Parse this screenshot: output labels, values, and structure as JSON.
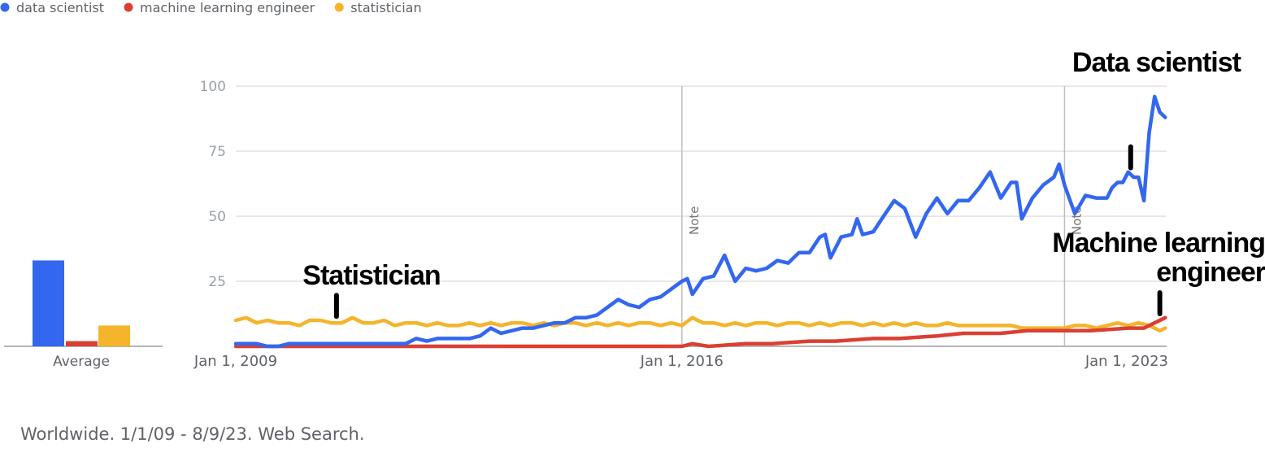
{
  "footer": "Worldwide. 1/1/09 - 8/9/23. Web Search.",
  "average_label": "Average",
  "colors": {
    "data scientist": "#3367f0",
    "machine learning engineer": "#db3f33",
    "statistician": "#f4b42c"
  },
  "chart_data": {
    "type": "line",
    "legend_position": "top-left",
    "grid": true,
    "x_range": [
      "Jan 1, 2009",
      "Aug 9, 2023"
    ],
    "ylim": [
      0,
      100
    ],
    "yticks": [
      25,
      50,
      75,
      100
    ],
    "xticks": [
      {
        "date": "2009-01-01",
        "label": "Jan 1, 2009"
      },
      {
        "date": "2016-01-01",
        "label": "Jan 1, 2016"
      },
      {
        "date": "2023-01-01",
        "label": "Jan 1, 2023"
      }
    ],
    "notes": [
      {
        "date": "2016-01-01",
        "label": "Note"
      },
      {
        "date": "2022-01-01",
        "label": "Note"
      }
    ],
    "annotations": [
      {
        "lines": [
          "Statistician"
        ],
        "series": "statistician",
        "date": "2010-08-01"
      },
      {
        "lines": [
          "Data scientist"
        ],
        "series": "data scientist",
        "date": "2023-01-15"
      },
      {
        "lines": [
          "Machine learning",
          "engineer"
        ],
        "series": "machine learning engineer",
        "date": "2023-07-01"
      }
    ],
    "series": [
      {
        "name": "data scientist",
        "average": 33,
        "points": [
          [
            "2009-01-01",
            1
          ],
          [
            "2009-03-01",
            1
          ],
          [
            "2009-05-01",
            1
          ],
          [
            "2009-07-01",
            0
          ],
          [
            "2009-09-01",
            0
          ],
          [
            "2009-11-01",
            1
          ],
          [
            "2010-01-01",
            1
          ],
          [
            "2010-03-01",
            1
          ],
          [
            "2010-05-01",
            1
          ],
          [
            "2010-07-01",
            1
          ],
          [
            "2010-09-01",
            1
          ],
          [
            "2010-11-01",
            1
          ],
          [
            "2011-01-01",
            1
          ],
          [
            "2011-03-01",
            1
          ],
          [
            "2011-05-01",
            1
          ],
          [
            "2011-07-01",
            1
          ],
          [
            "2011-09-01",
            1
          ],
          [
            "2011-11-01",
            3
          ],
          [
            "2012-01-01",
            2
          ],
          [
            "2012-03-01",
            3
          ],
          [
            "2012-05-01",
            3
          ],
          [
            "2012-07-01",
            3
          ],
          [
            "2012-09-01",
            3
          ],
          [
            "2012-11-01",
            4
          ],
          [
            "2013-01-01",
            7
          ],
          [
            "2013-03-01",
            5
          ],
          [
            "2013-05-01",
            6
          ],
          [
            "2013-07-01",
            7
          ],
          [
            "2013-09-01",
            7
          ],
          [
            "2013-11-01",
            8
          ],
          [
            "2014-01-01",
            9
          ],
          [
            "2014-03-01",
            9
          ],
          [
            "2014-05-01",
            11
          ],
          [
            "2014-07-01",
            11
          ],
          [
            "2014-09-01",
            12
          ],
          [
            "2014-11-01",
            15
          ],
          [
            "2015-01-01",
            18
          ],
          [
            "2015-03-01",
            16
          ],
          [
            "2015-05-01",
            15
          ],
          [
            "2015-07-01",
            18
          ],
          [
            "2015-09-01",
            19
          ],
          [
            "2015-11-01",
            22
          ],
          [
            "2016-01-01",
            25
          ],
          [
            "2016-02-01",
            26
          ],
          [
            "2016-03-01",
            20
          ],
          [
            "2016-05-01",
            26
          ],
          [
            "2016-07-01",
            27
          ],
          [
            "2016-09-01",
            35
          ],
          [
            "2016-11-01",
            25
          ],
          [
            "2017-01-01",
            30
          ],
          [
            "2017-03-01",
            29
          ],
          [
            "2017-05-01",
            30
          ],
          [
            "2017-07-01",
            33
          ],
          [
            "2017-09-01",
            32
          ],
          [
            "2017-11-01",
            36
          ],
          [
            "2018-01-01",
            36
          ],
          [
            "2018-03-01",
            42
          ],
          [
            "2018-04-01",
            43
          ],
          [
            "2018-05-01",
            34
          ],
          [
            "2018-07-01",
            42
          ],
          [
            "2018-09-01",
            43
          ],
          [
            "2018-10-01",
            49
          ],
          [
            "2018-11-01",
            43
          ],
          [
            "2019-01-01",
            44
          ],
          [
            "2019-03-01",
            50
          ],
          [
            "2019-05-01",
            56
          ],
          [
            "2019-07-01",
            53
          ],
          [
            "2019-09-01",
            42
          ],
          [
            "2019-11-01",
            51
          ],
          [
            "2020-01-01",
            57
          ],
          [
            "2020-03-01",
            51
          ],
          [
            "2020-05-01",
            56
          ],
          [
            "2020-07-01",
            56
          ],
          [
            "2020-09-01",
            61
          ],
          [
            "2020-11-01",
            67
          ],
          [
            "2021-01-01",
            57
          ],
          [
            "2021-03-01",
            63
          ],
          [
            "2021-04-01",
            63
          ],
          [
            "2021-05-01",
            49
          ],
          [
            "2021-07-01",
            57
          ],
          [
            "2021-09-01",
            62
          ],
          [
            "2021-11-01",
            65
          ],
          [
            "2021-12-01",
            70
          ],
          [
            "2022-01-01",
            62
          ],
          [
            "2022-03-01",
            51
          ],
          [
            "2022-05-01",
            58
          ],
          [
            "2022-07-01",
            57
          ],
          [
            "2022-09-01",
            57
          ],
          [
            "2022-10-01",
            61
          ],
          [
            "2022-11-01",
            63
          ],
          [
            "2022-12-01",
            63
          ],
          [
            "2023-01-01",
            67
          ],
          [
            "2023-02-01",
            65
          ],
          [
            "2023-03-01",
            65
          ],
          [
            "2023-04-01",
            56
          ],
          [
            "2023-05-01",
            82
          ],
          [
            "2023-06-01",
            96
          ],
          [
            "2023-07-01",
            90
          ],
          [
            "2023-08-01",
            88
          ]
        ]
      },
      {
        "name": "machine learning engineer",
        "average": 2,
        "points": [
          [
            "2009-01-01",
            0
          ],
          [
            "2010-01-01",
            0
          ],
          [
            "2011-01-01",
            0
          ],
          [
            "2012-01-01",
            0
          ],
          [
            "2013-01-01",
            0
          ],
          [
            "2014-01-01",
            0
          ],
          [
            "2015-01-01",
            0
          ],
          [
            "2016-01-01",
            0
          ],
          [
            "2016-03-01",
            1
          ],
          [
            "2016-06-01",
            0
          ],
          [
            "2017-01-01",
            1
          ],
          [
            "2017-06-01",
            1
          ],
          [
            "2018-01-01",
            2
          ],
          [
            "2018-06-01",
            2
          ],
          [
            "2019-01-01",
            3
          ],
          [
            "2019-06-01",
            3
          ],
          [
            "2020-01-01",
            4
          ],
          [
            "2020-06-01",
            5
          ],
          [
            "2021-01-01",
            5
          ],
          [
            "2021-06-01",
            6
          ],
          [
            "2022-01-01",
            6
          ],
          [
            "2022-06-01",
            6
          ],
          [
            "2023-01-01",
            7
          ],
          [
            "2023-04-01",
            7
          ],
          [
            "2023-06-01",
            9
          ],
          [
            "2023-08-01",
            11
          ]
        ]
      },
      {
        "name": "statistician",
        "average": 8,
        "points": [
          [
            "2009-01-01",
            10
          ],
          [
            "2009-03-01",
            11
          ],
          [
            "2009-05-01",
            9
          ],
          [
            "2009-07-01",
            10
          ],
          [
            "2009-09-01",
            9
          ],
          [
            "2009-11-01",
            9
          ],
          [
            "2010-01-01",
            8
          ],
          [
            "2010-03-01",
            10
          ],
          [
            "2010-05-01",
            10
          ],
          [
            "2010-07-01",
            9
          ],
          [
            "2010-09-01",
            9
          ],
          [
            "2010-11-01",
            11
          ],
          [
            "2011-01-01",
            9
          ],
          [
            "2011-03-01",
            9
          ],
          [
            "2011-05-01",
            10
          ],
          [
            "2011-07-01",
            8
          ],
          [
            "2011-09-01",
            9
          ],
          [
            "2011-11-01",
            9
          ],
          [
            "2012-01-01",
            8
          ],
          [
            "2012-03-01",
            9
          ],
          [
            "2012-05-01",
            8
          ],
          [
            "2012-07-01",
            8
          ],
          [
            "2012-09-01",
            9
          ],
          [
            "2012-11-01",
            8
          ],
          [
            "2013-01-01",
            9
          ],
          [
            "2013-03-01",
            8
          ],
          [
            "2013-05-01",
            9
          ],
          [
            "2013-07-01",
            9
          ],
          [
            "2013-09-01",
            8
          ],
          [
            "2013-11-01",
            9
          ],
          [
            "2014-01-01",
            8
          ],
          [
            "2014-03-01",
            9
          ],
          [
            "2014-05-01",
            9
          ],
          [
            "2014-07-01",
            8
          ],
          [
            "2014-09-01",
            9
          ],
          [
            "2014-11-01",
            8
          ],
          [
            "2015-01-01",
            9
          ],
          [
            "2015-03-01",
            8
          ],
          [
            "2015-05-01",
            9
          ],
          [
            "2015-07-01",
            9
          ],
          [
            "2015-09-01",
            8
          ],
          [
            "2015-11-01",
            9
          ],
          [
            "2016-01-01",
            8
          ],
          [
            "2016-03-01",
            11
          ],
          [
            "2016-05-01",
            9
          ],
          [
            "2016-07-01",
            9
          ],
          [
            "2016-09-01",
            8
          ],
          [
            "2016-11-01",
            9
          ],
          [
            "2017-01-01",
            8
          ],
          [
            "2017-03-01",
            9
          ],
          [
            "2017-05-01",
            9
          ],
          [
            "2017-07-01",
            8
          ],
          [
            "2017-09-01",
            9
          ],
          [
            "2017-11-01",
            9
          ],
          [
            "2018-01-01",
            8
          ],
          [
            "2018-03-01",
            9
          ],
          [
            "2018-05-01",
            8
          ],
          [
            "2018-07-01",
            9
          ],
          [
            "2018-09-01",
            9
          ],
          [
            "2018-11-01",
            8
          ],
          [
            "2019-01-01",
            9
          ],
          [
            "2019-03-01",
            8
          ],
          [
            "2019-05-01",
            9
          ],
          [
            "2019-07-01",
            8
          ],
          [
            "2019-09-01",
            9
          ],
          [
            "2019-11-01",
            8
          ],
          [
            "2020-01-01",
            8
          ],
          [
            "2020-03-01",
            9
          ],
          [
            "2020-05-01",
            8
          ],
          [
            "2020-07-01",
            8
          ],
          [
            "2020-09-01",
            8
          ],
          [
            "2020-11-01",
            8
          ],
          [
            "2021-01-01",
            8
          ],
          [
            "2021-03-01",
            8
          ],
          [
            "2021-05-01",
            7
          ],
          [
            "2021-07-01",
            7
          ],
          [
            "2021-09-01",
            7
          ],
          [
            "2021-11-01",
            7
          ],
          [
            "2022-01-01",
            7
          ],
          [
            "2022-03-01",
            8
          ],
          [
            "2022-05-01",
            8
          ],
          [
            "2022-07-01",
            7
          ],
          [
            "2022-09-01",
            8
          ],
          [
            "2022-11-01",
            9
          ],
          [
            "2023-01-01",
            8
          ],
          [
            "2023-03-01",
            9
          ],
          [
            "2023-05-01",
            8
          ],
          [
            "2023-06-01",
            7
          ],
          [
            "2023-07-01",
            6
          ],
          [
            "2023-08-01",
            7
          ]
        ]
      }
    ]
  }
}
